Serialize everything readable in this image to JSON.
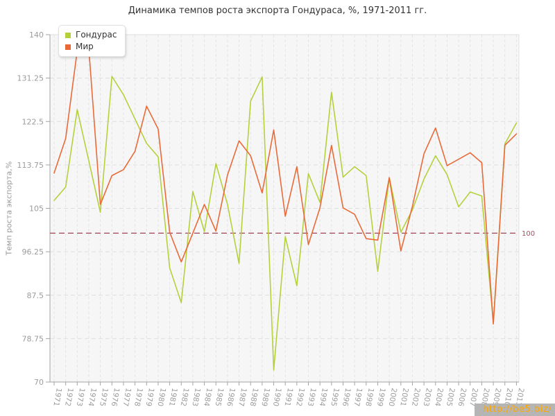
{
  "title": "Динамика темпов роста экспорта Гондураса, %, 1971-2011 гг.",
  "legend": [
    {
      "label": "Гондурас",
      "color": "#b4d13c"
    },
    {
      "label": "Мир",
      "color": "#e96a38"
    }
  ],
  "y_axis": {
    "title": "Темп роста экспорта,%",
    "ticks": [
      140,
      131.25,
      122.5,
      113.75,
      105,
      96.25,
      87.5,
      78.75,
      70
    ],
    "min": 70,
    "max": 140
  },
  "reference_line": {
    "value": 100,
    "label": "100",
    "color": "#a85060"
  },
  "watermark": "http://be5.biz/",
  "chart_data": {
    "type": "line",
    "title": "Динамика темпов роста экспорта Гондураса, %, 1971-2011 гг.",
    "xlabel": "",
    "ylabel": "Темп роста экспорта,%",
    "ylim": [
      70,
      140
    ],
    "grid": true,
    "legend_position": "top-left",
    "x": [
      1971,
      1972,
      1973,
      1974,
      1975,
      1976,
      1977,
      1978,
      1979,
      1980,
      1981,
      1982,
      1983,
      1984,
      1985,
      1986,
      1987,
      1988,
      1989,
      1990,
      1991,
      1992,
      1993,
      1994,
      1995,
      1996,
      1997,
      1998,
      1999,
      2000,
      2001,
      2002,
      2003,
      2004,
      2005,
      2006,
      2007,
      2008,
      2009,
      2010,
      2011
    ],
    "series": [
      {
        "name": "Гондурас",
        "color": "#b4d13c",
        "values": [
          106.6,
          109.3,
          124.9,
          114.6,
          104.2,
          131.6,
          127.9,
          123.0,
          118.1,
          115.4,
          93.0,
          86.0,
          108.4,
          100.3,
          114.0,
          105.8,
          93.9,
          126.6,
          131.5,
          72.4,
          99.3,
          89.4,
          112.0,
          106.2,
          128.4,
          111.3,
          113.4,
          111.6,
          92.3,
          111.2,
          100.2,
          104.7,
          110.9,
          115.6,
          111.8,
          105.3,
          108.3,
          107.5,
          82.0,
          118.0,
          122.2
        ]
      },
      {
        "name": "Мир",
        "color": "#e96a38",
        "values": [
          112.1,
          119.1,
          136.8,
          137.3,
          105.8,
          111.6,
          112.8,
          116.5,
          125.6,
          121.0,
          100.2,
          94.2,
          100.0,
          105.8,
          100.4,
          111.7,
          118.6,
          115.6,
          108.1,
          120.8,
          103.4,
          113.4,
          97.7,
          105.1,
          117.7,
          105.1,
          103.8,
          98.9,
          98.6,
          111.2,
          96.4,
          105.4,
          116.0,
          121.2,
          113.6,
          114.9,
          116.2,
          114.2,
          81.7,
          117.7,
          120.0
        ]
      }
    ]
  }
}
